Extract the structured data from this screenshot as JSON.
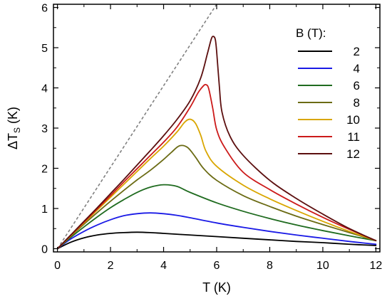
{
  "chart_data": {
    "type": "line",
    "xlabel": "T (K)",
    "ylabel": "ΔT",
    "ylabel_sub": "S",
    "ylabel_unit": " (K)",
    "xlim": [
      -0.15,
      12.15
    ],
    "ylim": [
      -0.08,
      6.08
    ],
    "xticks": [
      0,
      2,
      4,
      6,
      8,
      10,
      12
    ],
    "yticks": [
      0,
      1,
      2,
      3,
      4,
      5,
      6
    ],
    "legend_title": "B (T):",
    "legend_position": "top-right",
    "grid": false,
    "reference_line": {
      "style": "dashed",
      "color": "#808080",
      "x": [
        0,
        5.92
      ],
      "y": [
        0,
        6.0
      ]
    },
    "series": [
      {
        "name": "2",
        "color": "#000000",
        "x": [
          0,
          0.5,
          1,
          1.5,
          2,
          2.5,
          3,
          3.5,
          4,
          5,
          6,
          7,
          8,
          9,
          10,
          11,
          12
        ],
        "y": [
          0,
          0.16,
          0.27,
          0.34,
          0.38,
          0.4,
          0.41,
          0.4,
          0.38,
          0.34,
          0.3,
          0.26,
          0.22,
          0.18,
          0.15,
          0.11,
          0.08
        ]
      },
      {
        "name": "4",
        "color": "#1a1ae6",
        "x": [
          0,
          0.5,
          1,
          1.5,
          2,
          2.5,
          3,
          3.5,
          4,
          4.5,
          5,
          6,
          7,
          8,
          9,
          10,
          11,
          12
        ],
        "y": [
          0,
          0.24,
          0.43,
          0.59,
          0.72,
          0.82,
          0.87,
          0.89,
          0.87,
          0.83,
          0.77,
          0.64,
          0.53,
          0.43,
          0.34,
          0.26,
          0.18,
          0.11
        ]
      },
      {
        "name": "6",
        "color": "#1f6b1f",
        "x": [
          0,
          0.5,
          1,
          1.5,
          2,
          2.5,
          3,
          3.5,
          4,
          4.5,
          5,
          6,
          7,
          8,
          9,
          10,
          11,
          12
        ],
        "y": [
          0,
          0.28,
          0.54,
          0.79,
          1.02,
          1.22,
          1.4,
          1.53,
          1.59,
          1.55,
          1.4,
          1.14,
          0.93,
          0.75,
          0.59,
          0.45,
          0.32,
          0.2
        ]
      },
      {
        "name": "8",
        "color": "#6b6b14",
        "x": [
          0,
          0.5,
          1,
          1.5,
          2,
          2.5,
          3,
          3.5,
          4,
          4.3,
          4.6,
          4.9,
          5.2,
          5.5,
          6,
          7,
          8,
          9,
          10,
          11,
          12
        ],
        "y": [
          0,
          0.31,
          0.61,
          0.9,
          1.18,
          1.45,
          1.71,
          1.95,
          2.22,
          2.4,
          2.56,
          2.52,
          2.28,
          2.0,
          1.7,
          1.32,
          1.05,
          0.81,
          0.6,
          0.4,
          0.2
        ]
      },
      {
        "name": "10",
        "color": "#d9a600",
        "x": [
          0,
          0.5,
          1,
          1.5,
          2,
          2.5,
          3,
          3.5,
          4,
          4.5,
          4.8,
          5.0,
          5.2,
          5.4,
          5.6,
          6,
          7,
          8,
          9,
          10,
          11,
          12
        ],
        "y": [
          0,
          0.32,
          0.64,
          0.96,
          1.28,
          1.6,
          1.92,
          2.24,
          2.55,
          2.9,
          3.15,
          3.22,
          3.12,
          2.82,
          2.42,
          2.05,
          1.58,
          1.24,
          0.95,
          0.68,
          0.43,
          0.2
        ]
      },
      {
        "name": "11",
        "color": "#cc1a1a",
        "x": [
          0,
          0.5,
          1,
          1.5,
          2,
          2.5,
          3,
          3.5,
          4,
          4.5,
          5,
          5.3,
          5.5,
          5.6,
          5.7,
          5.85,
          6,
          6.3,
          7,
          8,
          9,
          10,
          11,
          12
        ],
        "y": [
          0,
          0.33,
          0.66,
          0.99,
          1.32,
          1.66,
          1.99,
          2.32,
          2.65,
          3.02,
          3.52,
          3.88,
          4.05,
          4.08,
          3.98,
          3.5,
          2.96,
          2.52,
          1.9,
          1.47,
          1.11,
          0.78,
          0.48,
          0.2
        ]
      },
      {
        "name": "12",
        "color": "#5c0f0f",
        "x": [
          0,
          0.5,
          1,
          1.5,
          2,
          2.5,
          3,
          3.5,
          4,
          4.5,
          5,
          5.4,
          5.65,
          5.8,
          5.88,
          5.95,
          6.0,
          6.1,
          6.2,
          6.5,
          7,
          8,
          9,
          10,
          11,
          12
        ],
        "y": [
          0,
          0.34,
          0.68,
          1.02,
          1.37,
          1.72,
          2.08,
          2.44,
          2.81,
          3.21,
          3.68,
          4.25,
          4.85,
          5.22,
          5.28,
          5.2,
          4.9,
          4.05,
          3.4,
          2.8,
          2.32,
          1.7,
          1.25,
          0.86,
          0.5,
          0.2
        ]
      }
    ]
  }
}
